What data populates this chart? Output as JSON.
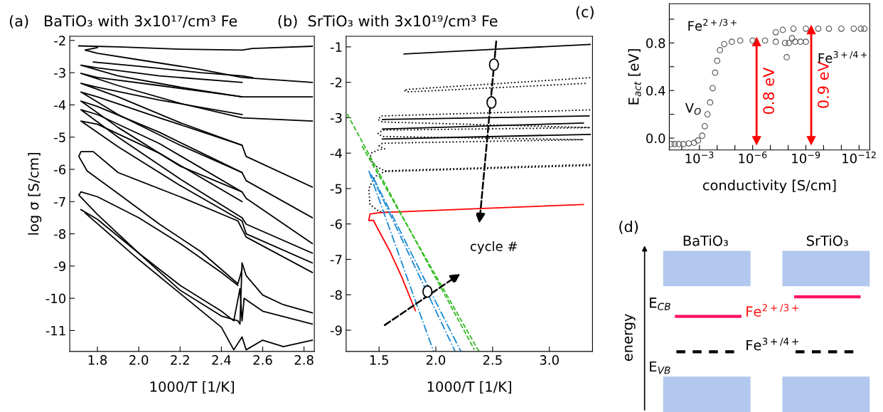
{
  "chart_data": [
    {
      "type": "line",
      "title": "(a)   BaTiO₃ with 3x10¹⁷/cm³ Fe",
      "xlabel": "1000/T [1/K]",
      "ylabel": "log σ [S/cm]",
      "xlim": [
        1.666,
        2.85
      ],
      "ylim": [
        -11.65,
        -1.87
      ],
      "xticks": [
        1.8,
        {
          "value": 2.0,
          "label": "2.0"
        },
        2.2,
        2.4,
        2.6,
        2.8
      ],
      "yticks": [
        -2,
        -3,
        -4,
        -5,
        -6,
        -7,
        -8,
        -9,
        -10,
        -11
      ],
      "grid": false,
      "legend": false,
      "marker": "none",
      "line_style": "solid",
      "series": [
        {
          "color": "#000000",
          "x": [
            2.84,
            2.55,
            2.5,
            2.2,
            1.9,
            1.71
          ],
          "values": [
            -2.18,
            -2.25,
            -2.3,
            -2.27,
            -2.2,
            -2.17
          ]
        },
        {
          "color": "#000000",
          "x": [
            1.8,
            1.74,
            1.8,
            2.0,
            2.3,
            2.5,
            2.84
          ],
          "values": [
            -2.22,
            -2.3,
            -2.4,
            -2.6,
            -2.9,
            -3.15,
            -3.3
          ]
        },
        {
          "color": "#000000",
          "x": [
            1.78,
            2.0,
            2.3,
            2.5,
            2.55
          ],
          "values": [
            -2.67,
            -2.8,
            -3.0,
            -3.1,
            -3.15
          ]
        },
        {
          "color": "#000000",
          "x": [
            2.84,
            2.5,
            2.2,
            1.9,
            1.72,
            1.8,
            2.1,
            2.5
          ],
          "values": [
            -3.75,
            -3.75,
            -3.45,
            -3.1,
            -2.77,
            -2.85,
            -3.1,
            -3.3
          ]
        },
        {
          "color": "#000000",
          "x": [
            2.84,
            2.5,
            2.2,
            1.9,
            1.72,
            1.8,
            2.1,
            2.5
          ],
          "values": [
            -4.5,
            -4.4,
            -3.95,
            -3.4,
            -3.02,
            -3.15,
            -3.4,
            -3.75
          ]
        },
        {
          "color": "#000000",
          "x": [
            2.84,
            2.52,
            2.5,
            2.2,
            1.9,
            1.72,
            1.8,
            2.1,
            2.5
          ],
          "values": [
            -6.55,
            -5.6,
            -5.25,
            -4.55,
            -3.75,
            -3.33,
            -3.45,
            -3.85,
            -4.3
          ]
        },
        {
          "color": "#000000",
          "x": [
            2.84,
            2.52,
            2.5,
            2.2,
            1.9,
            1.72,
            1.8,
            2.1,
            2.5
          ],
          "values": [
            -7.5,
            -6.35,
            -6.1,
            -5.25,
            -4.3,
            -3.6,
            -3.75,
            -4.4,
            -5.25
          ]
        },
        {
          "color": "#000000",
          "x": [
            2.84,
            2.52,
            2.5,
            2.2,
            1.9,
            1.72,
            1.8,
            2.1,
            2.5
          ],
          "values": [
            -8.3,
            -6.9,
            -6.7,
            -5.9,
            -4.7,
            -3.88,
            -4.05,
            -4.85,
            -6.1
          ]
        },
        {
          "color": "#000000",
          "x": [
            2.84,
            2.52,
            2.5,
            2.2,
            1.9,
            1.72,
            1.8,
            2.1,
            2.5
          ],
          "values": [
            -8.6,
            -7.7,
            -7.5,
            -6.3,
            -5.0,
            -4.15,
            -4.3,
            -5.2,
            -6.7
          ]
        },
        {
          "color": "#000000",
          "x": [
            2.84,
            2.52,
            2.5,
            2.2,
            1.9,
            1.72,
            1.8,
            2.1,
            2.5
          ],
          "values": [
            -8.9,
            -8.0,
            -7.6,
            -6.5,
            -5.3,
            -4.5,
            -4.6,
            -5.5,
            -7.0
          ]
        },
        {
          "color": "#000000",
          "x": [
            2.84,
            2.52,
            2.48,
            2.2,
            1.9,
            1.78,
            1.72,
            1.71,
            1.75,
            1.9,
            2.1,
            2.3,
            2.48,
            2.5
          ],
          "values": [
            -9.2,
            -8.1,
            -7.6,
            -6.85,
            -6.1,
            -5.45,
            -5.45,
            -5.6,
            -6.05,
            -6.75,
            -7.7,
            -8.55,
            -9.55,
            -9.1
          ]
        },
        {
          "color": "#000000",
          "x": [
            2.48,
            2.4,
            2.2,
            2.0,
            1.8,
            1.72,
            1.71,
            1.8,
            2.0,
            2.2,
            2.4,
            2.48,
            2.49,
            2.5,
            2.52,
            2.6,
            2.7,
            2.84
          ],
          "values": [
            -9.6,
            -9.2,
            -8.3,
            -7.5,
            -6.85,
            -6.7,
            -6.8,
            -7.4,
            -8.6,
            -9.75,
            -10.55,
            -10.7,
            -10.8,
            -8.9,
            -9.3,
            -9.9,
            -10.2,
            -10.45
          ]
        },
        {
          "color": "#000000",
          "x": [
            1.72,
            1.8,
            2.0,
            2.2,
            2.4,
            2.46,
            2.49,
            2.5,
            2.51,
            2.6,
            2.84
          ],
          "values": [
            -7.25,
            -7.55,
            -8.6,
            -9.6,
            -10.4,
            -10.7,
            -9.7,
            -10.7,
            -10.0,
            -10.4,
            -10.8
          ]
        },
        {
          "color": "#000000",
          "x": [
            1.74,
            2.0,
            2.2,
            2.4,
            2.46,
            2.5,
            2.52,
            2.6,
            2.7,
            2.84
          ],
          "values": [
            -7.35,
            -8.8,
            -9.85,
            -10.9,
            -11.6,
            -11.2,
            -11.6,
            -11.3,
            -11.5,
            -11.3
          ]
        }
      ]
    },
    {
      "type": "line",
      "title": "(b)  SrTiO₃ with 3x10¹⁹/cm³ Fe",
      "xlabel": "1000/T [1/K]",
      "xlim": [
        1.21,
        3.38
      ],
      "ylim": [
        -9.6,
        -0.7
      ],
      "xticks": [
        1.5,
        {
          "value": 2.0,
          "label": "2.0"
        },
        2.5,
        {
          "value": 3.0,
          "label": "3.0"
        }
      ],
      "yticks": [
        -1,
        -2,
        -3,
        -4,
        -5,
        -6,
        -7,
        -8,
        -9
      ],
      "grid": false,
      "legend": false,
      "marker": "none",
      "annotations": [
        "cycle #"
      ],
      "series": [
        {
          "color": "#000000",
          "line_style": "solid",
          "x": [
            1.72,
            2.5,
            3.36
          ],
          "values": [
            -1.2,
            -1.07,
            -0.93
          ]
        },
        {
          "color": "#000000",
          "line_style": "dotted",
          "x": [
            3.36,
            1.75,
            1.72,
            1.76,
            3.33
          ],
          "values": [
            -1.87,
            -2.2,
            -2.23,
            -2.27,
            -2.03
          ]
        },
        {
          "color": "#000000",
          "line_style": "dotted",
          "x": [
            3.36,
            1.52,
            1.49,
            1.53,
            3.36,
            1.53,
            1.49,
            1.53,
            3.3,
            1.53,
            1.5,
            1.55,
            1.5,
            1.43,
            1.42,
            1.46,
            1.55,
            3.36
          ],
          "values": [
            -2.78,
            -2.95,
            -3.05,
            -3.12,
            -3.28,
            -3.35,
            -3.45,
            -3.53,
            -3.62,
            -3.72,
            -3.8,
            -3.88,
            -3.9,
            -4.0,
            -4.15,
            -4.35,
            -4.5,
            -4.32
          ]
        },
        {
          "color": "#000000",
          "line_style": "dotted",
          "x": [
            3.36,
            1.55,
            1.46,
            1.41,
            1.42,
            1.5,
            1.6
          ],
          "values": [
            -4.35,
            -4.52,
            -4.67,
            -5.0,
            -5.45,
            -5.65,
            -5.67
          ]
        },
        {
          "color": "#000000",
          "line_style": "solid",
          "x": [
            1.53,
            3.35
          ],
          "values": [
            -3.05,
            -2.95
          ]
        },
        {
          "color": "#000000",
          "line_style": "solid",
          "x": [
            1.53,
            3.3
          ],
          "values": [
            -3.32,
            -3.15
          ]
        },
        {
          "color": "#000000",
          "line_style": "solid",
          "x": [
            1.53,
            3.36
          ],
          "values": [
            -3.6,
            -3.47
          ]
        },
        {
          "color": "#ff0000",
          "line_style": "solid",
          "x": [
            3.3,
            2.5,
            1.5,
            1.42,
            1.41,
            1.45,
            1.6,
            1.7,
            1.82
          ],
          "values": [
            -5.45,
            -5.55,
            -5.68,
            -5.72,
            -5.9,
            -5.9,
            -6.8,
            -7.5,
            -8.45
          ]
        },
        {
          "color": "#1a8ad4",
          "line_style": "dashdot",
          "x": [
            1.41,
            1.98
          ],
          "values": [
            -4.5,
            -9.6
          ]
        },
        {
          "color": "#1a8ad4",
          "line_style": "dashdot",
          "x": [
            1.43,
            2.17
          ],
          "values": [
            -4.6,
            -9.6
          ]
        },
        {
          "color": "#1a8ad4",
          "line_style": "dashdot",
          "x": [
            1.45,
            2.22
          ],
          "values": [
            -4.7,
            -9.6
          ]
        },
        {
          "color": "#33bb22",
          "line_style": "dashed",
          "x": [
            1.22,
            2.34
          ],
          "values": [
            -2.9,
            -9.55
          ]
        },
        {
          "color": "#33bb22",
          "line_style": "dashed",
          "x": [
            1.35,
            2.38
          ],
          "values": [
            -3.8,
            -9.6
          ]
        }
      ]
    },
    {
      "type": "scatter",
      "title": "(c)",
      "xlabel": "conductivity [S/cm]",
      "ylabel": "E$_{act}$ [eV]",
      "log": "x",
      "xlim": [
        0.05,
        2.5e-13
      ],
      "ylim": [
        -0.1,
        1.13
      ],
      "xticks": [
        {
          "value": 0.01,
          "label": null
        },
        {
          "value": 0.001,
          "label": "10$^{−3}$"
        },
        {
          "value": 0.0001,
          "label": null
        },
        {
          "value": 1e-05,
          "label": null
        },
        {
          "value": 1e-06,
          "label": "10$^{−6}$"
        },
        {
          "value": 1e-07,
          "label": null
        },
        {
          "value": 1e-08,
          "label": null
        },
        {
          "value": 1e-09,
          "label": "10$^{−9}$"
        },
        {
          "value": 1e-10,
          "label": null
        },
        {
          "value": 1e-11,
          "label": null
        },
        {
          "value": 1e-12,
          "label": "10$^{−12}$"
        }
      ],
      "yticks": [
        {
          "value": 0.0,
          "label": "0.0"
        },
        {
          "value": 0.2,
          "label": null
        },
        {
          "value": 0.4,
          "label": "0.4"
        },
        {
          "value": 0.6,
          "label": null
        },
        {
          "value": 0.8,
          "label": "0.8"
        },
        {
          "value": 1.0,
          "label": null
        }
      ],
      "grid": false,
      "legend": false,
      "marker": "circle",
      "annotations": [
        "V$_{O}$",
        "Fe$^{2+/3+}$",
        "Fe$^{3+/4+}$"
      ],
      "series": [
        {
          "color": "#555555",
          "x": [
            0.04,
            0.025,
            0.015,
            0.008,
            0.004,
            0.002,
            0.0012,
            0.0007,
            0.0005,
            0.00035,
            0.00025,
            0.00018,
            0.00013,
            0.0001,
            7e-05,
            4e-05,
            1.5e-05,
            5e-06,
            1e-06,
            2e-07,
            5e-08,
            1.5e-08,
            1.2e-08,
            9e-09,
            6e-09,
            4e-09,
            2e-09,
            1e-09,
            5e-08,
            2e-08,
            5e-09,
            1e-09,
            2e-10,
            5e-11,
            1e-11,
            2e-12,
            8e-13,
            5e-13
          ],
          "values": [
            -0.05,
            -0.05,
            -0.05,
            -0.05,
            -0.045,
            -0.04,
            -0.02,
            0.02,
            0.1,
            0.2,
            0.3,
            0.42,
            0.55,
            0.65,
            0.74,
            0.79,
            0.81,
            0.82,
            0.82,
            0.82,
            0.81,
            0.8,
            0.68,
            0.8,
            0.84,
            0.81,
            0.81,
            0.81,
            0.89,
            0.91,
            0.92,
            0.92,
            0.92,
            0.92,
            0.92,
            0.92,
            0.92,
            0.92
          ]
        },
        {
          "name": "0.8 eV",
          "type": "line",
          "marker": "triangle",
          "color": "#ff0000",
          "x": [
            6e-07,
            6e-07
          ],
          "values": [
            -0.02,
            0.81
          ]
        },
        {
          "name": "0.9 eV",
          "type": "line",
          "marker": "triangle",
          "color": "#ff0000",
          "x": [
            5e-10,
            5e-10
          ],
          "values": [
            -0.02,
            0.91
          ]
        }
      ]
    },
    {
      "type": "other",
      "title": "(d)",
      "ylabel": "energy",
      "annotations": [
        "BaTiO₃",
        "SrTiO₃",
        "E$_{CB}$",
        "Fe$^{2+/3+}$",
        "Fe$^{3+/4+}$",
        "E$_{VB}$"
      ]
    }
  ]
}
